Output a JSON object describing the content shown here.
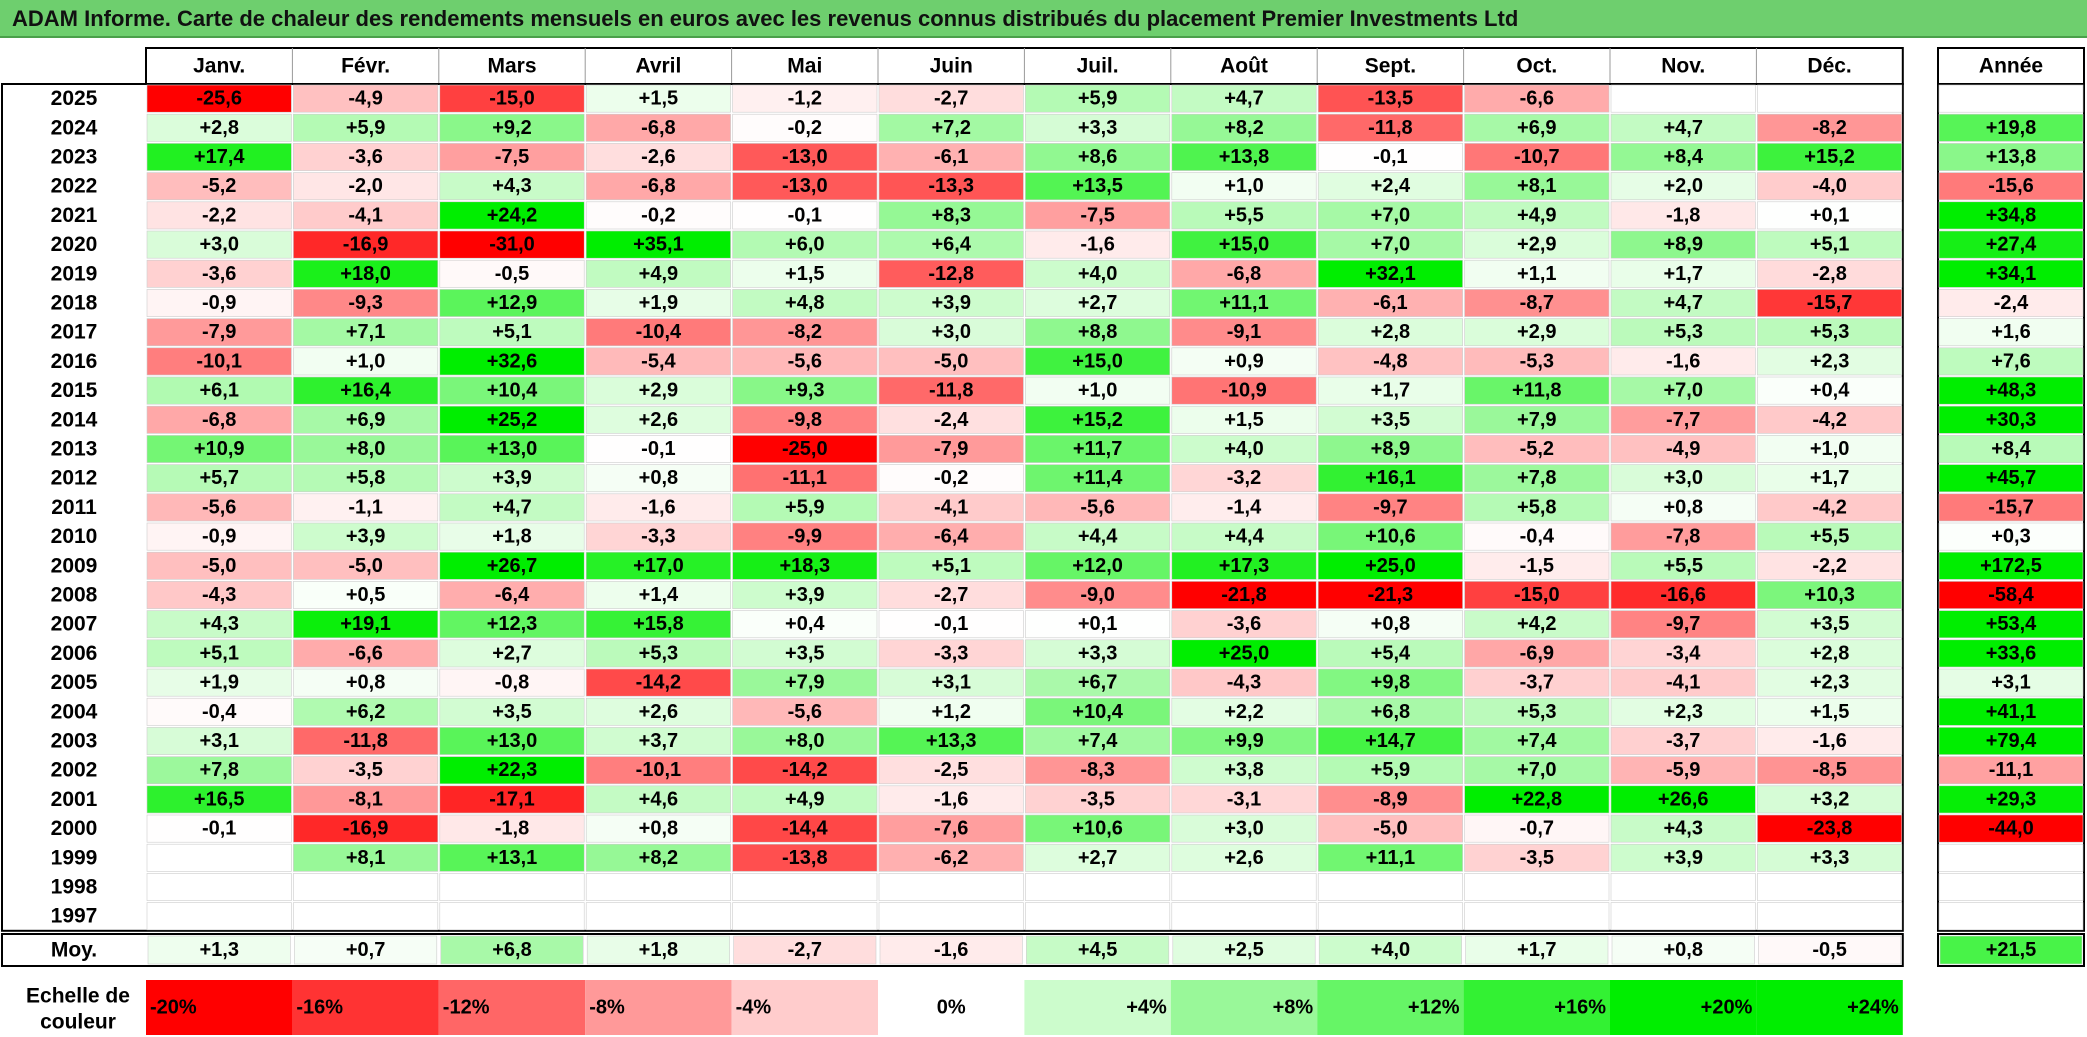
{
  "title": "ADAM Informe. Carte de chaleur des rendements mensuels en euros avec les revenus connus distribués du placement Premier Investments Ltd",
  "colors": {
    "title_bg": "#6ecf6e",
    "negative_max": "#ff0000",
    "positive_max": "#00ee00",
    "neutral": "#ffffff"
  },
  "chart_data": {
    "type": "heatmap",
    "title": "ADAM Informe. Carte de chaleur des rendements mensuels en euros avec les revenus connus distribués du placement Premier Investments Ltd",
    "months": [
      "Janv.",
      "Févr.",
      "Mars",
      "Avril",
      "Mai",
      "Juin",
      "Juil.",
      "Août",
      "Sept.",
      "Oct.",
      "Nov.",
      "Déc."
    ],
    "year_header": "Année",
    "average_label": "Moy.",
    "rows": [
      {
        "year": "2025",
        "months": [
          "-25,6",
          "-4,9",
          "-15,0",
          "+1,5",
          "-1,2",
          "-2,7",
          "+5,9",
          "+4,7",
          "-13,5",
          "-6,6",
          "",
          ""
        ],
        "annual": ""
      },
      {
        "year": "2024",
        "months": [
          "+2,8",
          "+5,9",
          "+9,2",
          "-6,8",
          "-0,2",
          "+7,2",
          "+3,3",
          "+8,2",
          "-11,8",
          "+6,9",
          "+4,7",
          "-8,2"
        ],
        "annual": "+19,8"
      },
      {
        "year": "2023",
        "months": [
          "+17,4",
          "-3,6",
          "-7,5",
          "-2,6",
          "-13,0",
          "-6,1",
          "+8,6",
          "+13,8",
          "-0,1",
          "-10,7",
          "+8,4",
          "+15,2"
        ],
        "annual": "+13,8"
      },
      {
        "year": "2022",
        "months": [
          "-5,2",
          "-2,0",
          "+4,3",
          "-6,8",
          "-13,0",
          "-13,3",
          "+13,5",
          "+1,0",
          "+2,4",
          "+8,1",
          "+2,0",
          "-4,0"
        ],
        "annual": "-15,6"
      },
      {
        "year": "2021",
        "months": [
          "-2,2",
          "-4,1",
          "+24,2",
          "-0,2",
          "-0,1",
          "+8,3",
          "-7,5",
          "+5,5",
          "+7,0",
          "+4,9",
          "-1,8",
          "+0,1"
        ],
        "annual": "+34,8"
      },
      {
        "year": "2020",
        "months": [
          "+3,0",
          "-16,9",
          "-31,0",
          "+35,1",
          "+6,0",
          "+6,4",
          "-1,6",
          "+15,0",
          "+7,0",
          "+2,9",
          "+8,9",
          "+5,1"
        ],
        "annual": "+27,4"
      },
      {
        "year": "2019",
        "months": [
          "-3,6",
          "+18,0",
          "-0,5",
          "+4,9",
          "+1,5",
          "-12,8",
          "+4,0",
          "-6,8",
          "+32,1",
          "+1,1",
          "+1,7",
          "-2,8"
        ],
        "annual": "+34,1"
      },
      {
        "year": "2018",
        "months": [
          "-0,9",
          "-9,3",
          "+12,9",
          "+1,9",
          "+4,8",
          "+3,9",
          "+2,7",
          "+11,1",
          "-6,1",
          "-8,7",
          "+4,7",
          "-15,7"
        ],
        "annual": "-2,4"
      },
      {
        "year": "2017",
        "months": [
          "-7,9",
          "+7,1",
          "+5,1",
          "-10,4",
          "-8,2",
          "+3,0",
          "+8,8",
          "-9,1",
          "+2,8",
          "+2,9",
          "+5,3",
          "+5,3"
        ],
        "annual": "+1,6"
      },
      {
        "year": "2016",
        "months": [
          "-10,1",
          "+1,0",
          "+32,6",
          "-5,4",
          "-5,6",
          "-5,0",
          "+15,0",
          "+0,9",
          "-4,8",
          "-5,3",
          "-1,6",
          "+2,3"
        ],
        "annual": "+7,6"
      },
      {
        "year": "2015",
        "months": [
          "+6,1",
          "+16,4",
          "+10,4",
          "+2,9",
          "+9,3",
          "-11,8",
          "+1,0",
          "-10,9",
          "+1,7",
          "+11,8",
          "+7,0",
          "+0,4"
        ],
        "annual": "+48,3"
      },
      {
        "year": "2014",
        "months": [
          "-6,8",
          "+6,9",
          "+25,2",
          "+2,6",
          "-9,8",
          "-2,4",
          "+15,2",
          "+1,5",
          "+3,5",
          "+7,9",
          "-7,7",
          "-4,2"
        ],
        "annual": "+30,3"
      },
      {
        "year": "2013",
        "months": [
          "+10,9",
          "+8,0",
          "+13,0",
          "-0,1",
          "-25,0",
          "-7,9",
          "+11,7",
          "+4,0",
          "+8,9",
          "-5,2",
          "-4,9",
          "+1,0"
        ],
        "annual": "+8,4"
      },
      {
        "year": "2012",
        "months": [
          "+5,7",
          "+5,8",
          "+3,9",
          "+0,8",
          "-11,1",
          "-0,2",
          "+11,4",
          "-3,2",
          "+16,1",
          "+7,8",
          "+3,0",
          "+1,7"
        ],
        "annual": "+45,7"
      },
      {
        "year": "2011",
        "months": [
          "-5,6",
          "-1,1",
          "+4,7",
          "-1,6",
          "+5,9",
          "-4,1",
          "-5,6",
          "-1,4",
          "-9,7",
          "+5,8",
          "+0,8",
          "-4,2"
        ],
        "annual": "-15,7"
      },
      {
        "year": "2010",
        "months": [
          "-0,9",
          "+3,9",
          "+1,8",
          "-3,3",
          "-9,9",
          "-6,4",
          "+4,4",
          "+4,4",
          "+10,6",
          "-0,4",
          "-7,8",
          "+5,5"
        ],
        "annual": "+0,3"
      },
      {
        "year": "2009",
        "months": [
          "-5,0",
          "-5,0",
          "+26,7",
          "+17,0",
          "+18,3",
          "+5,1",
          "+12,0",
          "+17,3",
          "+25,0",
          "-1,5",
          "+5,5",
          "-2,2"
        ],
        "annual": "+172,5"
      },
      {
        "year": "2008",
        "months": [
          "-4,3",
          "+0,5",
          "-6,4",
          "+1,4",
          "+3,9",
          "-2,7",
          "-9,0",
          "-21,8",
          "-21,3",
          "-15,0",
          "-16,6",
          "+10,3"
        ],
        "annual": "-58,4"
      },
      {
        "year": "2007",
        "months": [
          "+4,3",
          "+19,1",
          "+12,3",
          "+15,8",
          "+0,4",
          "-0,1",
          "+0,1",
          "-3,6",
          "+0,8",
          "+4,2",
          "-9,7",
          "+3,5"
        ],
        "annual": "+53,4"
      },
      {
        "year": "2006",
        "months": [
          "+5,1",
          "-6,6",
          "+2,7",
          "+5,3",
          "+3,5",
          "-3,3",
          "+3,3",
          "+25,0",
          "+5,4",
          "-6,9",
          "-3,4",
          "+2,8"
        ],
        "annual": "+33,6"
      },
      {
        "year": "2005",
        "months": [
          "+1,9",
          "+0,8",
          "-0,8",
          "-14,2",
          "+7,9",
          "+3,1",
          "+6,7",
          "-4,3",
          "+9,8",
          "-3,7",
          "-4,1",
          "+2,3"
        ],
        "annual": "+3,1"
      },
      {
        "year": "2004",
        "months": [
          "-0,4",
          "+6,2",
          "+3,5",
          "+2,6",
          "-5,6",
          "+1,2",
          "+10,4",
          "+2,2",
          "+6,8",
          "+5,3",
          "+2,3",
          "+1,5"
        ],
        "annual": "+41,1"
      },
      {
        "year": "2003",
        "months": [
          "+3,1",
          "-11,8",
          "+13,0",
          "+3,7",
          "+8,0",
          "+13,3",
          "+7,4",
          "+9,9",
          "+14,7",
          "+7,4",
          "-3,7",
          "-1,6"
        ],
        "annual": "+79,4"
      },
      {
        "year": "2002",
        "months": [
          "+7,8",
          "-3,5",
          "+22,3",
          "-10,1",
          "-14,2",
          "-2,5",
          "-8,3",
          "+3,8",
          "+5,9",
          "+7,0",
          "-5,9",
          "-8,5"
        ],
        "annual": "-11,1"
      },
      {
        "year": "2001",
        "months": [
          "+16,5",
          "-8,1",
          "-17,1",
          "+4,6",
          "+4,9",
          "-1,6",
          "-3,5",
          "-3,1",
          "-8,9",
          "+22,8",
          "+26,6",
          "+3,2"
        ],
        "annual": "+29,3"
      },
      {
        "year": "2000",
        "months": [
          "-0,1",
          "-16,9",
          "-1,8",
          "+0,8",
          "-14,4",
          "-7,6",
          "+10,6",
          "+3,0",
          "-5,0",
          "-0,7",
          "+4,3",
          "-23,8"
        ],
        "annual": "-44,0"
      },
      {
        "year": "1999",
        "months": [
          "",
          "+8,1",
          "+13,1",
          "+8,2",
          "-13,8",
          "-6,2",
          "+2,7",
          "+2,6",
          "+11,1",
          "-3,5",
          "+3,9",
          "+3,3"
        ],
        "annual": ""
      },
      {
        "year": "1998",
        "months": [
          "",
          "",
          "",
          "",
          "",
          "",
          "",
          "",
          "",
          "",
          "",
          ""
        ],
        "annual": ""
      },
      {
        "year": "1997",
        "months": [
          "",
          "",
          "",
          "",
          "",
          "",
          "",
          "",
          "",
          "",
          "",
          ""
        ],
        "annual": ""
      }
    ],
    "average": {
      "label": "Moy.",
      "months": [
        "+1,3",
        "+0,7",
        "+6,8",
        "+1,8",
        "-2,7",
        "-1,6",
        "+4,5",
        "+2,5",
        "+4,0",
        "+1,7",
        "+0,8",
        "-0,5"
      ],
      "annual": "+21,5"
    },
    "scale": {
      "label_line1": "Echelle de",
      "label_line2": "couleur",
      "steps": [
        "-20%",
        "-16%",
        "-12%",
        "-8%",
        "-4%",
        "0%",
        "+4%",
        "+8%",
        "+12%",
        "+16%",
        "+20%",
        "+24%"
      ]
    }
  }
}
